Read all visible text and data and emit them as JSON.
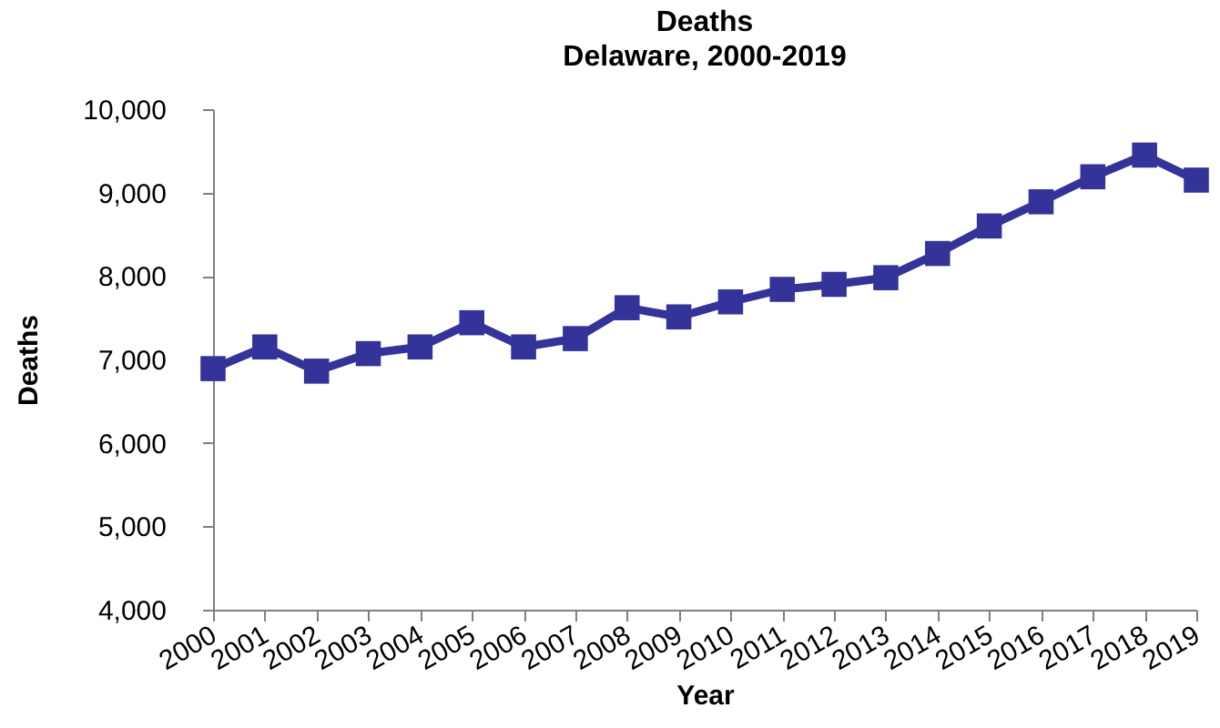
{
  "chart_data": {
    "type": "line",
    "title": "Deaths",
    "subtitle": "Delaware, 2000-2019",
    "xlabel": "Year",
    "ylabel": "Deaths",
    "categories": [
      "2000",
      "2001",
      "2002",
      "2003",
      "2004",
      "2005",
      "2006",
      "2007",
      "2008",
      "2009",
      "2010",
      "2011",
      "2012",
      "2013",
      "2014",
      "2015",
      "2016",
      "2017",
      "2018",
      "2019"
    ],
    "series": [
      {
        "color": "#333399",
        "values": [
          6890,
          7150,
          6860,
          7070,
          7150,
          7440,
          7150,
          7250,
          7620,
          7510,
          7690,
          7840,
          7900,
          7980,
          8270,
          8600,
          8890,
          9190,
          9450,
          9150
        ]
      }
    ],
    "ylim": [
      4000,
      10000
    ],
    "yticks": [
      {
        "value": 4000,
        "label": "4,000"
      },
      {
        "value": 5000,
        "label": "5,000"
      },
      {
        "value": 6000,
        "label": "6,000"
      },
      {
        "value": 7000,
        "label": "7,000"
      },
      {
        "value": 8000,
        "label": "8,000"
      },
      {
        "value": 9000,
        "label": "9,000"
      },
      {
        "value": 10000,
        "label": "10,000"
      }
    ],
    "grid": false,
    "legend": false,
    "marker": "square",
    "line_style": "solid"
  }
}
